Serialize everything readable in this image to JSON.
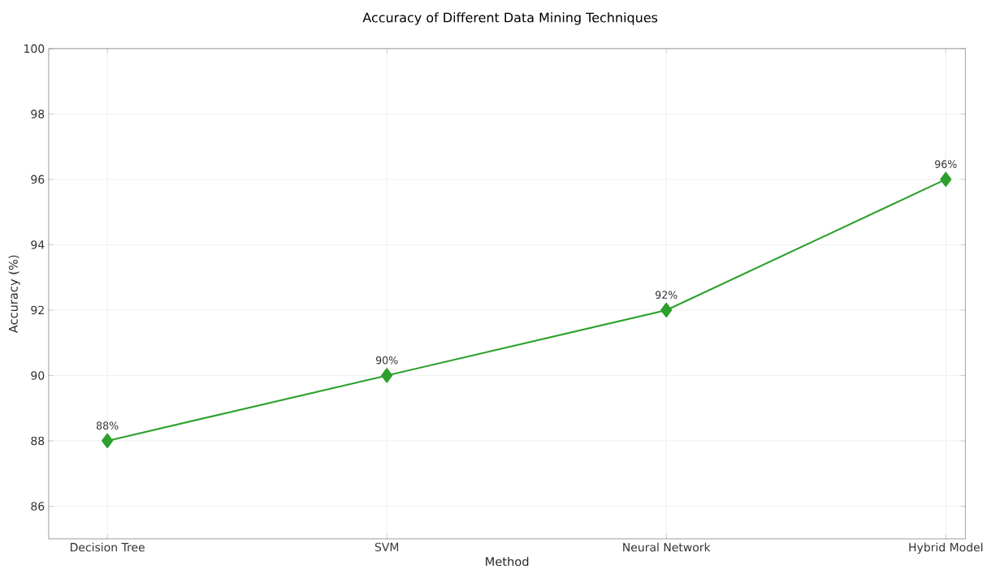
{
  "chart_data": {
    "type": "line",
    "title": "Accuracy of Different Data Mining Techniques",
    "xlabel": "Method",
    "ylabel": "Accuracy (%)",
    "categories": [
      "Decision Tree",
      "SVM",
      "Neural Network",
      "Hybrid Model"
    ],
    "values": [
      88,
      90,
      92,
      96
    ],
    "value_labels": [
      "88%",
      "90%",
      "92%",
      "96%"
    ],
    "color": "#2ca02c",
    "marker": "diamond",
    "line_style": "solid",
    "ylim": [
      85,
      100
    ],
    "yticks": [
      86,
      88,
      90,
      92,
      94,
      96,
      98,
      100
    ],
    "grid": true
  }
}
